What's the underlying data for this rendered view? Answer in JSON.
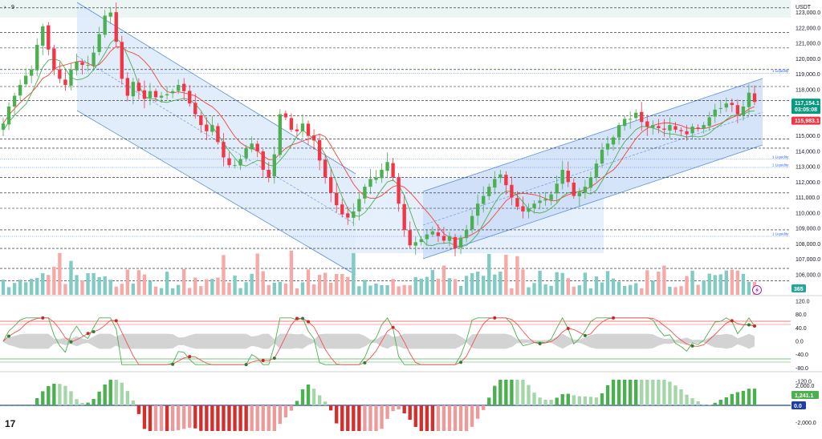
{
  "header": {
    "symbol_short": "9",
    "currency": "USDT"
  },
  "colors": {
    "up": "#26a69a",
    "down": "#ef5350",
    "candle_up": "#4caf50",
    "candle_down": "#f23645",
    "channel_fill": "#dbe8fb",
    "channel_line": "#5b8fd6",
    "ma_line": "#f44336",
    "ma_green": "#4caf50",
    "price_badge": "#089981",
    "level_badge": "#f23645",
    "volume_badge": "#26a69a",
    "macd_badge": "#1c3faa"
  },
  "price_panel": {
    "y_range": [
      105000,
      123500
    ],
    "ticks": [
      "123,000.0",
      "122,000.0",
      "121,000.0",
      "120,000.0",
      "119,000.0",
      "118,000.0",
      "117,000.0",
      "116,000.0",
      "115,000.0",
      "114,000.0",
      "113,000.0",
      "112,000.0",
      "111,000.0",
      "110,000.0",
      "109,000.0",
      "108,000.0",
      "107,000.0",
      "106,000.0"
    ],
    "tick_values": [
      123000,
      122000,
      121000,
      120000,
      119000,
      118000,
      117000,
      116000,
      115000,
      114000,
      113000,
      112000,
      111000,
      110000,
      109000,
      108000,
      107000,
      106000
    ],
    "dashed_levels": [
      123300,
      121700,
      120700,
      119300,
      118200,
      117300,
      116300,
      114800,
      114200,
      112300,
      111300,
      110300,
      108900,
      107700,
      106400,
      105600
    ],
    "liquidity_labels": [
      {
        "text": "1 Liquidity",
        "value": 119050
      },
      {
        "text": "1 Liquidity",
        "value": 113480
      },
      {
        "text": "1 Liquidity",
        "value": 112950
      },
      {
        "text": "1 Liquidity",
        "value": 108480
      }
    ],
    "current_price": "117,154.1",
    "countdown": "03:05:08",
    "level_price": "115,983.1",
    "current_price_value": 117154.1,
    "level_price_value": 115983.1,
    "volume_label": "365"
  },
  "rsi_panel": {
    "ticks": [
      "120.0",
      "80.0",
      "40.0",
      "0.0",
      "-40.0",
      "-80.0",
      "-120.0"
    ],
    "tick_values": [
      120,
      80,
      40,
      0,
      -40,
      -80,
      -120
    ],
    "upper_band": 60,
    "lower_band": -60
  },
  "macd_panel": {
    "ticks": [
      "2,000.0",
      "-2,000.0"
    ],
    "tick_values": [
      2000,
      -2000
    ],
    "hist_value": "1,241.1",
    "zero_value": "0.0"
  },
  "logo": "17",
  "chart_data": {
    "type": "candlestick",
    "y_unit": "USDT",
    "candles_close": [
      115800,
      116900,
      117600,
      118300,
      118900,
      119300,
      120900,
      122100,
      120600,
      119300,
      118700,
      118300,
      119300,
      119800,
      119600,
      119600,
      120400,
      121600,
      122800,
      123000,
      121100,
      118700,
      117600,
      118500,
      117900,
      117400,
      117900,
      117500,
      117600,
      117700,
      117900,
      118300,
      117900,
      117100,
      116400,
      115700,
      115300,
      115700,
      114600,
      113600,
      113100,
      113100,
      113500,
      114200,
      114500,
      114000,
      112800,
      112300,
      113800,
      116400,
      116200,
      115400,
      115300,
      115800,
      115000,
      114700,
      113400,
      112300,
      111300,
      110500,
      109900,
      109700,
      110100,
      110900,
      111700,
      112200,
      112300,
      112800,
      113300,
      112300,
      110600,
      108900,
      107900,
      108100,
      108300,
      108600,
      108800,
      108500,
      108200,
      108500,
      107700,
      108400,
      108900,
      109800,
      110600,
      111100,
      111700,
      112200,
      112500,
      111800,
      111000,
      110400,
      110100,
      110300,
      110600,
      110800,
      110900,
      111200,
      111900,
      112800,
      112000,
      111100,
      111300,
      111700,
      112300,
      113200,
      114100,
      114500,
      114900,
      115700,
      116100,
      116100,
      116500,
      115900,
      115600,
      115700,
      115500,
      115400,
      115700,
      115400,
      115300,
      115100,
      115600,
      115500,
      115700,
      116200,
      116700,
      116800,
      117100,
      117000,
      116400,
      116900,
      117800,
      117200
    ],
    "series": [
      {
        "name": "Price",
        "style": "candles"
      }
    ]
  }
}
